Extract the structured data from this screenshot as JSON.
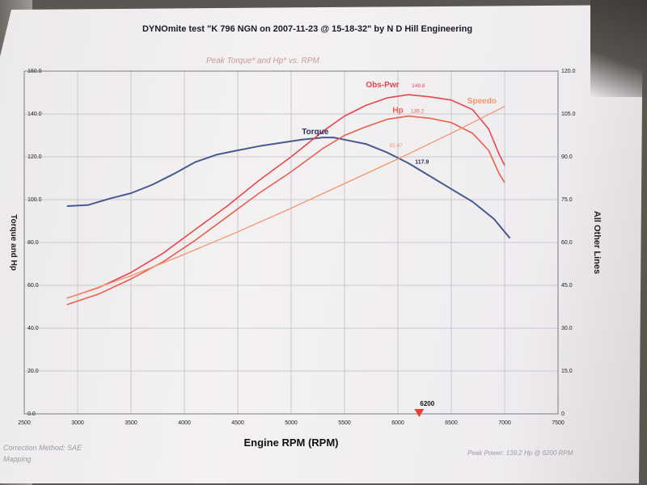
{
  "header": {
    "title": "DYNOmite test \"K 796 NGN on 2007-11-23 @ 15-18-32\" by N D Hill Engineering"
  },
  "footer": {
    "correction": "Correction Method: SAE",
    "mapping": "Mapping",
    "peak_power": "Peak Power: 139.2 Hp @ 6200 RPM"
  },
  "colors": {
    "torque": "#485a90",
    "obs_pwr": "#e8454e",
    "hp": "#ea5e4e",
    "speedo": "#f2956a",
    "grid": "#bdbcc8",
    "marker": "#e84030"
  },
  "chart_data": {
    "type": "line",
    "title": "Peak Torque* and Hp* vs. RPM",
    "xlabel": "Engine RPM (RPM)",
    "ylabel_left": "Torque and Hp",
    "ylabel_right": "All Other Lines",
    "xlim": [
      2500,
      7500
    ],
    "ylim_left": [
      0,
      160
    ],
    "ylim_right": [
      0,
      120
    ],
    "grid": true,
    "x_ticks": [
      "2500",
      "3000",
      "3500",
      "4000",
      "4500",
      "5000",
      "5500",
      "6000",
      "6500",
      "7000",
      "7500"
    ],
    "y_left_ticks": [
      "0.0",
      "20.0",
      "40.0",
      "60.0",
      "80.0",
      "100.0",
      "120.0",
      "140.0",
      "160.0"
    ],
    "y_right_ticks": [
      "0",
      "15.0",
      "30.0",
      "45.0",
      "60.0",
      "75.0",
      "90.0",
      "105.0",
      "120.0"
    ],
    "marker": {
      "x": 6200,
      "label": "6200"
    },
    "series": [
      {
        "name": "Torque",
        "axis": "left",
        "x": [
          2900,
          3100,
          3300,
          3500,
          3700,
          3900,
          4100,
          4300,
          4500,
          4700,
          4900,
          5100,
          5300,
          5400,
          5500,
          5700,
          5900,
          6100,
          6300,
          6500,
          6700,
          6900,
          7000,
          7050
        ],
        "y": [
          97,
          97.5,
          100.5,
          103,
          107,
          112,
          117.5,
          121,
          123,
          125,
          126.5,
          128,
          129,
          129,
          128,
          126,
          122,
          117,
          111,
          105,
          99,
          91,
          85,
          82
        ]
      },
      {
        "name": "Obs-Pwr",
        "axis": "left",
        "value_label": "149.8",
        "x": [
          2900,
          3200,
          3500,
          3800,
          4100,
          4400,
          4700,
          5000,
          5300,
          5500,
          5700,
          5900,
          6100,
          6300,
          6500,
          6700,
          6850,
          6950,
          7000
        ],
        "y": [
          54,
          59,
          66,
          75,
          86,
          97,
          109,
          120,
          132,
          139,
          144,
          147.5,
          149,
          148,
          146.5,
          142,
          133,
          121,
          116
        ]
      },
      {
        "name": "Hp",
        "axis": "left",
        "value_label": "139.2",
        "x": [
          2900,
          3200,
          3500,
          3800,
          4100,
          4400,
          4700,
          5000,
          5300,
          5500,
          5700,
          5900,
          6100,
          6300,
          6500,
          6700,
          6850,
          6950,
          7000
        ],
        "y": [
          51,
          56,
          63,
          71,
          81,
          92,
          103,
          113,
          124,
          130,
          134,
          137.5,
          139,
          138,
          136,
          131,
          123,
          112,
          108
        ]
      },
      {
        "name": "Speedo",
        "axis": "left",
        "value_label": "92.47",
        "x": [
          2900,
          3500,
          4000,
          4500,
          5000,
          5500,
          6000,
          6500,
          7000
        ],
        "y": [
          54,
          64.5,
          74.5,
          85,
          96,
          107.5,
          119,
          131,
          143.5
        ]
      }
    ],
    "annotations": [
      {
        "text": "117.9",
        "x": 6100,
        "y": 117.5
      }
    ]
  }
}
